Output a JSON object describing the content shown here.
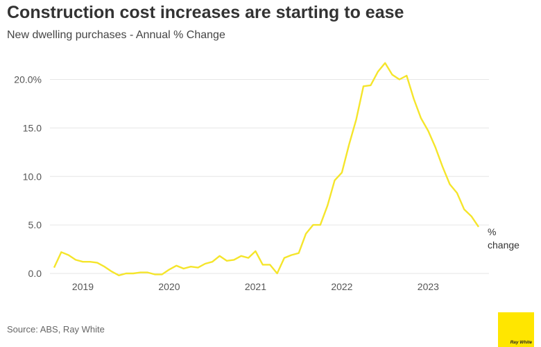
{
  "title": "Construction cost increases are starting to ease",
  "subtitle": "New dwelling purchases - Annual % Change",
  "source": "Source: ABS, Ray White",
  "logo_text": "Ray White",
  "colors": {
    "line": "#f5e52b",
    "grid": "#e6e6e6",
    "logo": "#ffe600"
  },
  "chart_data": {
    "type": "line",
    "x_tick_labels": [
      "2019",
      "2020",
      "2021",
      "2022",
      "2023"
    ],
    "y_tick_labels": [
      "0.0",
      "5.0",
      "10.0",
      "15.0",
      "20.0%"
    ],
    "ylim": [
      0,
      21.9
    ],
    "xlim": [
      "2018-09",
      "2023-08"
    ],
    "grid": true,
    "series": [
      {
        "name": "% change",
        "label_lines": [
          "%",
          "change"
        ],
        "points": [
          [
            "2018-09",
            0.6
          ],
          [
            "2018-10",
            2.2
          ],
          [
            "2018-11",
            1.9
          ],
          [
            "2018-12",
            1.4
          ],
          [
            "2019-01",
            1.2
          ],
          [
            "2019-02",
            1.2
          ],
          [
            "2019-03",
            1.1
          ],
          [
            "2019-04",
            0.7
          ],
          [
            "2019-05",
            0.2
          ],
          [
            "2019-06",
            -0.2
          ],
          [
            "2019-07",
            0.0
          ],
          [
            "2019-08",
            0.0
          ],
          [
            "2019-09",
            0.1
          ],
          [
            "2019-10",
            0.1
          ],
          [
            "2019-11",
            -0.1
          ],
          [
            "2019-12",
            -0.1
          ],
          [
            "2020-01",
            0.4
          ],
          [
            "2020-02",
            0.8
          ],
          [
            "2020-03",
            0.5
          ],
          [
            "2020-04",
            0.7
          ],
          [
            "2020-05",
            0.6
          ],
          [
            "2020-06",
            1.0
          ],
          [
            "2020-07",
            1.2
          ],
          [
            "2020-08",
            1.8
          ],
          [
            "2020-09",
            1.3
          ],
          [
            "2020-10",
            1.4
          ],
          [
            "2020-11",
            1.8
          ],
          [
            "2020-12",
            1.6
          ],
          [
            "2021-01",
            2.3
          ],
          [
            "2021-02",
            0.9
          ],
          [
            "2021-03",
            0.9
          ],
          [
            "2021-04",
            0.0
          ],
          [
            "2021-05",
            1.6
          ],
          [
            "2021-06",
            1.9
          ],
          [
            "2021-07",
            2.1
          ],
          [
            "2021-08",
            4.1
          ],
          [
            "2021-09",
            5.0
          ],
          [
            "2021-10",
            5.0
          ],
          [
            "2021-11",
            7.0
          ],
          [
            "2021-12",
            9.6
          ],
          [
            "2022-01",
            10.4
          ],
          [
            "2022-02",
            13.3
          ],
          [
            "2022-03",
            15.9
          ],
          [
            "2022-04",
            19.3
          ],
          [
            "2022-05",
            19.4
          ],
          [
            "2022-06",
            20.8
          ],
          [
            "2022-07",
            21.7
          ],
          [
            "2022-08",
            20.5
          ],
          [
            "2022-09",
            20.0
          ],
          [
            "2022-10",
            20.4
          ],
          [
            "2022-11",
            18.0
          ],
          [
            "2022-12",
            16.0
          ],
          [
            "2023-01",
            14.7
          ],
          [
            "2023-02",
            13.0
          ],
          [
            "2023-03",
            11.0
          ],
          [
            "2023-04",
            9.2
          ],
          [
            "2023-05",
            8.3
          ],
          [
            "2023-06",
            6.6
          ],
          [
            "2023-07",
            5.9
          ],
          [
            "2023-08",
            4.8
          ]
        ]
      }
    ]
  }
}
